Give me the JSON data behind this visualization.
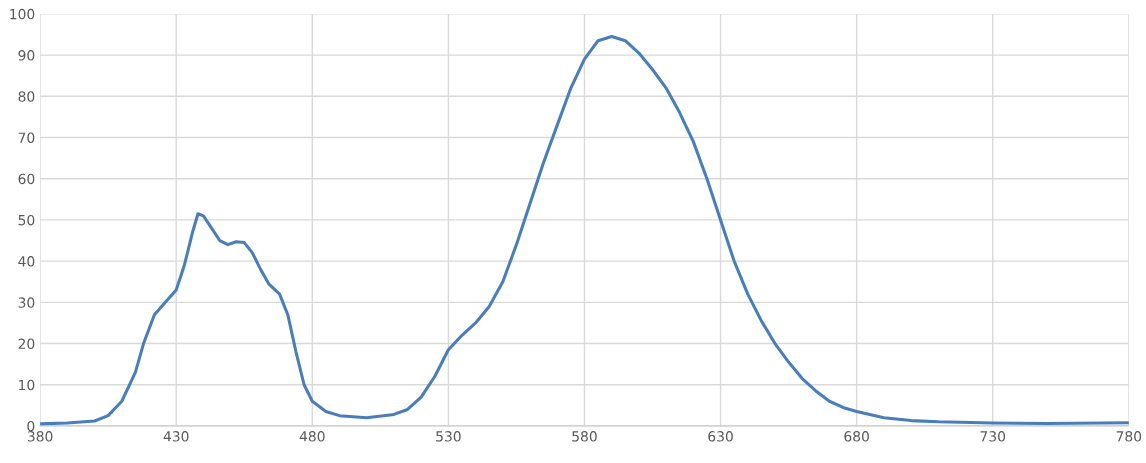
{
  "chart_data": {
    "type": "line",
    "x": [
      380,
      390,
      400,
      405,
      410,
      415,
      418,
      422,
      426,
      430,
      433,
      436,
      438,
      440,
      443,
      446,
      449,
      452,
      455,
      458,
      461,
      464,
      468,
      471,
      474,
      477,
      480,
      485,
      490,
      500,
      510,
      515,
      520,
      525,
      530,
      535,
      540,
      545,
      550,
      555,
      560,
      565,
      570,
      575,
      580,
      585,
      590,
      595,
      600,
      605,
      610,
      615,
      620,
      625,
      630,
      635,
      640,
      645,
      650,
      655,
      660,
      665,
      670,
      675,
      680,
      690,
      700,
      710,
      730,
      750,
      770,
      780
    ],
    "series": [
      {
        "color": "#4a7ebb",
        "values": [
          0.5,
          0.7,
          1.2,
          2.5,
          6,
          13,
          20,
          27,
          30,
          33,
          39,
          47,
          51.5,
          51,
          48,
          45,
          44,
          44.7,
          44.5,
          42,
          38,
          34.5,
          32,
          27,
          18,
          10,
          6,
          3.5,
          2.5,
          2,
          2.8,
          4,
          7,
          12,
          18.5,
          22,
          25,
          29,
          35,
          44,
          54,
          64,
          73,
          82,
          89,
          93.5,
          94.5,
          93.5,
          90.5,
          86.5,
          82,
          76,
          69,
          60,
          50,
          40,
          32,
          25.5,
          20,
          15.5,
          11.5,
          8.5,
          6,
          4.5,
          3.5,
          2,
          1.3,
          1,
          0.7,
          0.6,
          0.7,
          0.8
        ]
      }
    ],
    "xlim": [
      380,
      780
    ],
    "xticks": [
      380,
      430,
      480,
      530,
      580,
      630,
      680,
      730,
      780
    ],
    "ylim": [
      0,
      100
    ],
    "yticks": [
      0,
      10,
      20,
      30,
      40,
      50,
      60,
      70,
      80,
      90,
      100
    ],
    "grid": true,
    "marker": "none",
    "line_style": "solid"
  }
}
